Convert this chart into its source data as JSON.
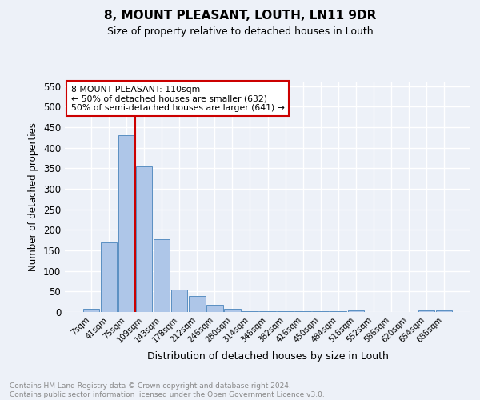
{
  "title1": "8, MOUNT PLEASANT, LOUTH, LN11 9DR",
  "title2": "Size of property relative to detached houses in Louth",
  "xlabel": "Distribution of detached houses by size in Louth",
  "ylabel": "Number of detached properties",
  "bin_labels": [
    "7sqm",
    "41sqm",
    "75sqm",
    "109sqm",
    "143sqm",
    "178sqm",
    "212sqm",
    "246sqm",
    "280sqm",
    "314sqm",
    "348sqm",
    "382sqm",
    "416sqm",
    "450sqm",
    "484sqm",
    "518sqm",
    "552sqm",
    "586sqm",
    "620sqm",
    "654sqm",
    "688sqm"
  ],
  "bar_heights": [
    8,
    170,
    430,
    355,
    178,
    55,
    38,
    18,
    8,
    2,
    2,
    2,
    1,
    1,
    1,
    4,
    0,
    0,
    0,
    4,
    4
  ],
  "bar_color": "#aec6e8",
  "bar_edge_color": "#5a8fc2",
  "vline_x": 2.5,
  "vline_color": "#cc0000",
  "annotation_text": "8 MOUNT PLEASANT: 110sqm\n← 50% of detached houses are smaller (632)\n50% of semi-detached houses are larger (641) →",
  "annotation_box_facecolor": "#ffffff",
  "annotation_box_edgecolor": "#cc0000",
  "ylim": [
    0,
    560
  ],
  "yticks": [
    0,
    50,
    100,
    150,
    200,
    250,
    300,
    350,
    400,
    450,
    500,
    550
  ],
  "footnote": "Contains HM Land Registry data © Crown copyright and database right 2024.\nContains public sector information licensed under the Open Government Licence v3.0.",
  "bg_color": "#edf1f8",
  "grid_color": "#ffffff"
}
